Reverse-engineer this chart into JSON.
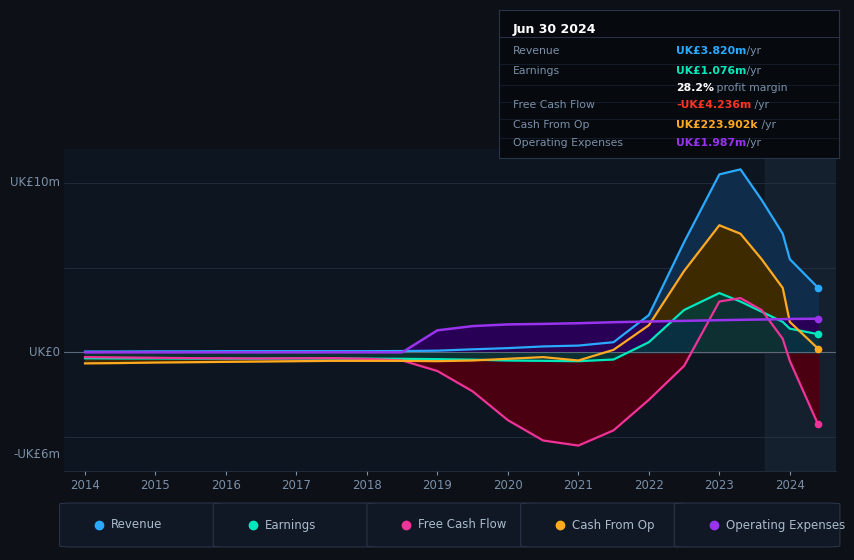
{
  "bg_color": "#0d1117",
  "plot_bg_color": "#0d1520",
  "grid_color": "#2a3347",
  "text_color": "#7a8fa8",
  "ylim": [
    -7.0,
    12.0
  ],
  "ylabel_top": "UK£10m",
  "ylabel_zero": "UK£0",
  "ylabel_bottom": "-UK£6m",
  "years": [
    2014.0,
    2014.5,
    2015.0,
    2015.5,
    2016.0,
    2016.5,
    2017.0,
    2017.5,
    2018.0,
    2018.5,
    2019.0,
    2019.5,
    2020.0,
    2020.5,
    2021.0,
    2021.5,
    2022.0,
    2022.5,
    2023.0,
    2023.3,
    2023.6,
    2023.9,
    2024.0,
    2024.4
  ],
  "revenue": [
    0.05,
    0.05,
    0.06,
    0.06,
    0.07,
    0.07,
    0.07,
    0.07,
    0.07,
    0.08,
    0.1,
    0.18,
    0.25,
    0.35,
    0.4,
    0.6,
    2.2,
    6.5,
    10.5,
    10.8,
    9.0,
    7.0,
    5.5,
    3.82
  ],
  "earnings": [
    -0.35,
    -0.36,
    -0.36,
    -0.37,
    -0.37,
    -0.37,
    -0.36,
    -0.36,
    -0.37,
    -0.38,
    -0.4,
    -0.43,
    -0.48,
    -0.5,
    -0.52,
    -0.42,
    0.6,
    2.5,
    3.5,
    3.0,
    2.4,
    1.8,
    1.4,
    1.076
  ],
  "free_cash_flow": [
    -0.28,
    -0.3,
    -0.32,
    -0.34,
    -0.35,
    -0.36,
    -0.35,
    -0.34,
    -0.38,
    -0.48,
    -1.1,
    -2.3,
    -4.0,
    -5.2,
    -5.5,
    -4.6,
    -2.8,
    -0.8,
    3.0,
    3.2,
    2.5,
    0.8,
    -0.5,
    -4.236
  ],
  "cash_from_op": [
    -0.65,
    -0.63,
    -0.6,
    -0.58,
    -0.56,
    -0.54,
    -0.52,
    -0.5,
    -0.5,
    -0.5,
    -0.52,
    -0.48,
    -0.38,
    -0.28,
    -0.48,
    0.15,
    1.6,
    4.8,
    7.5,
    7.0,
    5.5,
    3.8,
    1.8,
    0.224
  ],
  "operating_expenses": [
    0.0,
    0.0,
    0.0,
    0.0,
    0.0,
    0.0,
    0.0,
    0.0,
    0.0,
    0.0,
    1.3,
    1.55,
    1.65,
    1.68,
    1.72,
    1.78,
    1.82,
    1.86,
    1.9,
    1.92,
    1.94,
    1.96,
    1.97,
    1.987
  ],
  "revenue_color": "#2aaaff",
  "earnings_color": "#00e8bb",
  "fcf_color": "#ee3399",
  "cashop_color": "#ffaa22",
  "opex_color": "#9933ee",
  "revenue_fill": "#0f2d4a",
  "earnings_fill": "#003d3d",
  "fcf_fill": "#4a0010",
  "cashop_fill": "#3d2a00",
  "opex_fill": "#280055",
  "info_box": {
    "title": "Jun 30 2024",
    "rows": [
      {
        "label": "Revenue",
        "value": "UK£3.820m",
        "suffix": " /yr",
        "color": "#2aaaff"
      },
      {
        "label": "Earnings",
        "value": "UK£1.076m",
        "suffix": " /yr",
        "color": "#00e8bb"
      },
      {
        "label": "",
        "value": "28.2%",
        "suffix": " profit margin",
        "color": "#ffffff"
      },
      {
        "label": "Free Cash Flow",
        "value": "-UK£4.236m",
        "suffix": " /yr",
        "color": "#ff3322"
      },
      {
        "label": "Cash From Op",
        "value": "UK£223.902k",
        "suffix": " /yr",
        "color": "#ffaa22"
      },
      {
        "label": "Operating Expenses",
        "value": "UK£1.987m",
        "suffix": " /yr",
        "color": "#9933ee"
      }
    ]
  },
  "legend_items": [
    {
      "label": "Revenue",
      "color": "#2aaaff"
    },
    {
      "label": "Earnings",
      "color": "#00e8bb"
    },
    {
      "label": "Free Cash Flow",
      "color": "#ee3399"
    },
    {
      "label": "Cash From Op",
      "color": "#ffaa22"
    },
    {
      "label": "Operating Expenses",
      "color": "#9933ee"
    }
  ],
  "xticks": [
    2014,
    2015,
    2016,
    2017,
    2018,
    2019,
    2020,
    2021,
    2022,
    2023,
    2024
  ]
}
